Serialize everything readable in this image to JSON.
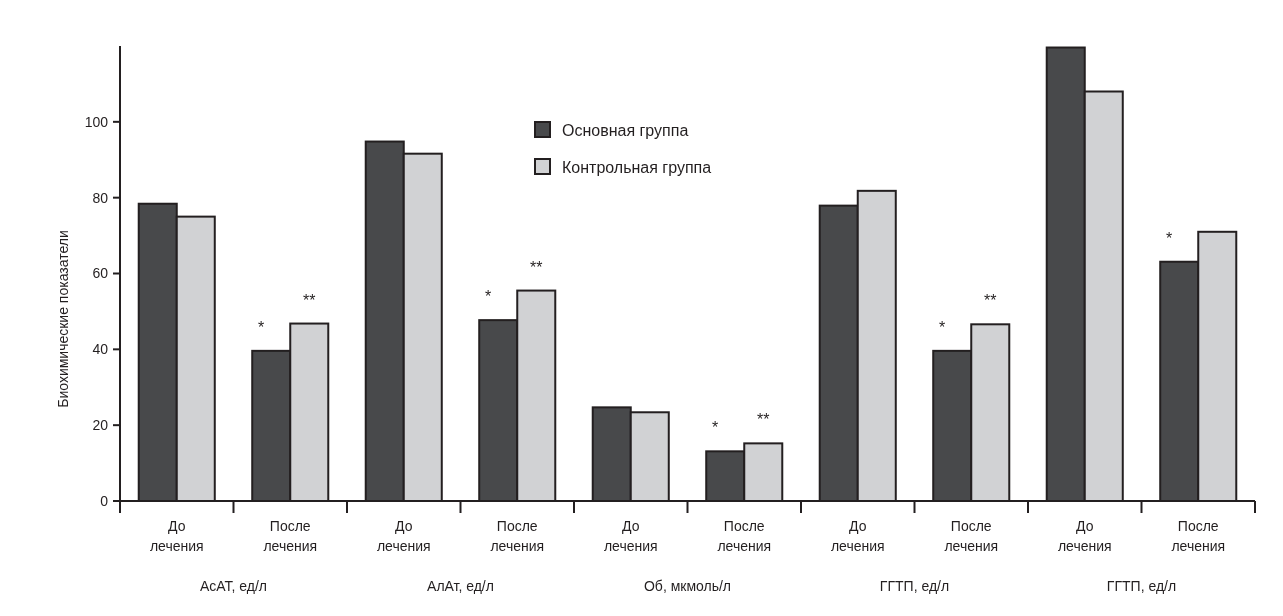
{
  "chart_data": {
    "type": "bar",
    "ylabel": "Биохимические показатели",
    "categories": [
      "До лечения",
      "После лечения",
      "До лечения",
      "После лечения",
      "До лечения",
      "После лечения",
      "До лечения",
      "После лечения",
      "До лечения",
      "После лечения"
    ],
    "series": [
      {
        "name": "Основная группа",
        "color": "#48494b",
        "values": [
          78.4,
          39.6,
          94.8,
          47.7,
          24.7,
          13.1,
          77.9,
          39.6,
          119.6,
          63.1
        ],
        "value_labels": [
          null,
          "*",
          null,
          "*",
          null,
          "*",
          null,
          "*",
          null,
          "*"
        ]
      },
      {
        "name": "Контрольная группа",
        "color": "#d1d2d4",
        "values": [
          75.0,
          46.8,
          91.6,
          55.5,
          23.4,
          15.2,
          81.8,
          46.6,
          108.0,
          71.0
        ],
        "value_labels": [
          null,
          "**",
          null,
          "**",
          null,
          "**",
          null,
          "**",
          null,
          null
        ]
      }
    ],
    "annotations": [
      "АсАТ, ед/л",
      "АлАт, ед/л",
      "Об, мкмоль/л",
      "ГГТП, ед/л",
      "ГГТП, ед/л"
    ],
    "ylim": [
      0,
      120
    ],
    "yticks": [
      0,
      20,
      40,
      60,
      80,
      100
    ],
    "grid": false,
    "legend": "top"
  }
}
